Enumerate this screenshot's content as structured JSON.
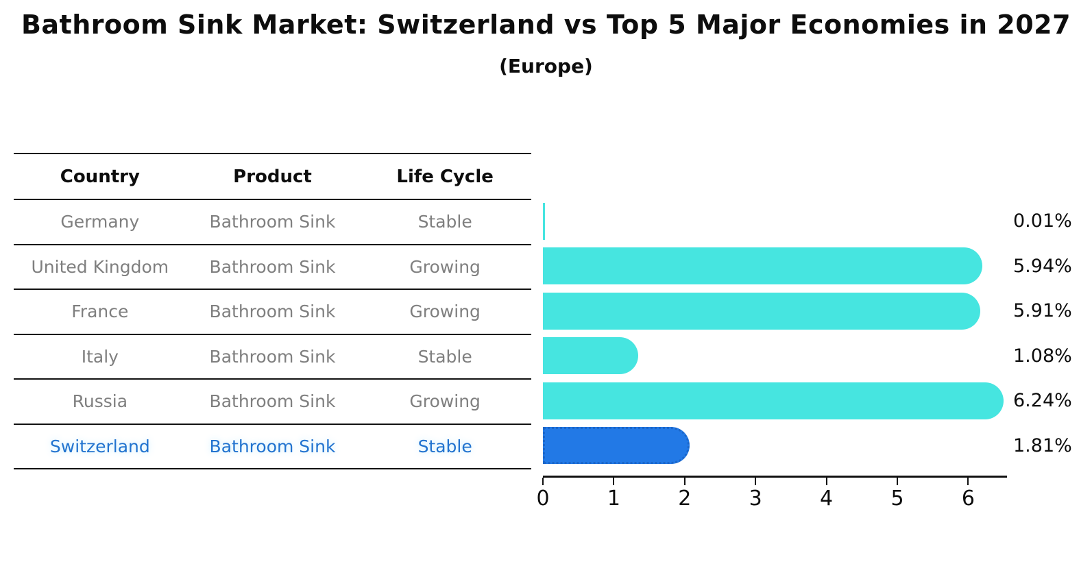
{
  "title": "Bathroom Sink Market: Switzerland vs Top 5 Major Economies in 2027",
  "subtitle": "(Europe)",
  "table": {
    "headers": [
      "Country",
      "Product",
      "Life Cycle"
    ],
    "rows": [
      {
        "country": "Germany",
        "product": "Bathroom Sink",
        "life_cycle": "Stable",
        "highlight": false
      },
      {
        "country": "United Kingdom",
        "product": "Bathroom Sink",
        "life_cycle": "Growing",
        "highlight": false
      },
      {
        "country": "France",
        "product": "Bathroom Sink",
        "life_cycle": "Growing",
        "highlight": false
      },
      {
        "country": "Italy",
        "product": "Bathroom Sink",
        "life_cycle": "Stable",
        "highlight": false
      },
      {
        "country": "Russia",
        "product": "Bathroom Sink",
        "life_cycle": "Growing",
        "highlight": false
      },
      {
        "country": "Switzerland",
        "product": "Bathroom Sink",
        "life_cycle": "Stable",
        "highlight": true
      }
    ]
  },
  "chart_data": {
    "type": "bar",
    "orientation": "horizontal",
    "title": "Bathroom Sink Market: Switzerland vs Top 5 Major Economies in 2027",
    "subtitle": "(Europe)",
    "categories": [
      "Germany",
      "United Kingdom",
      "France",
      "Italy",
      "Russia",
      "Switzerland"
    ],
    "values": [
      0.01,
      5.94,
      5.91,
      1.08,
      6.24,
      1.81
    ],
    "value_labels": [
      "0.01%",
      "5.94%",
      "5.91%",
      "1.08%",
      "6.24%",
      "1.81%"
    ],
    "xlabel": "",
    "ylabel": "",
    "xlim": [
      0,
      6.55
    ],
    "xticks": [
      0,
      1,
      2,
      3,
      4,
      5,
      6
    ],
    "grid": false,
    "legend": "none",
    "bar_color": "#46E5E0",
    "highlight_bar_color": "#2279E6",
    "highlight_category": "Switzerland"
  },
  "colors": {
    "bar": "#46E5E0",
    "highlight_bar": "#2279E6",
    "highlight_border": "#1b66c9",
    "highlight_text": "#2273CF",
    "table_text": "#7F7F7F",
    "heading_text": "#0D0D0D",
    "line": "#111111"
  }
}
